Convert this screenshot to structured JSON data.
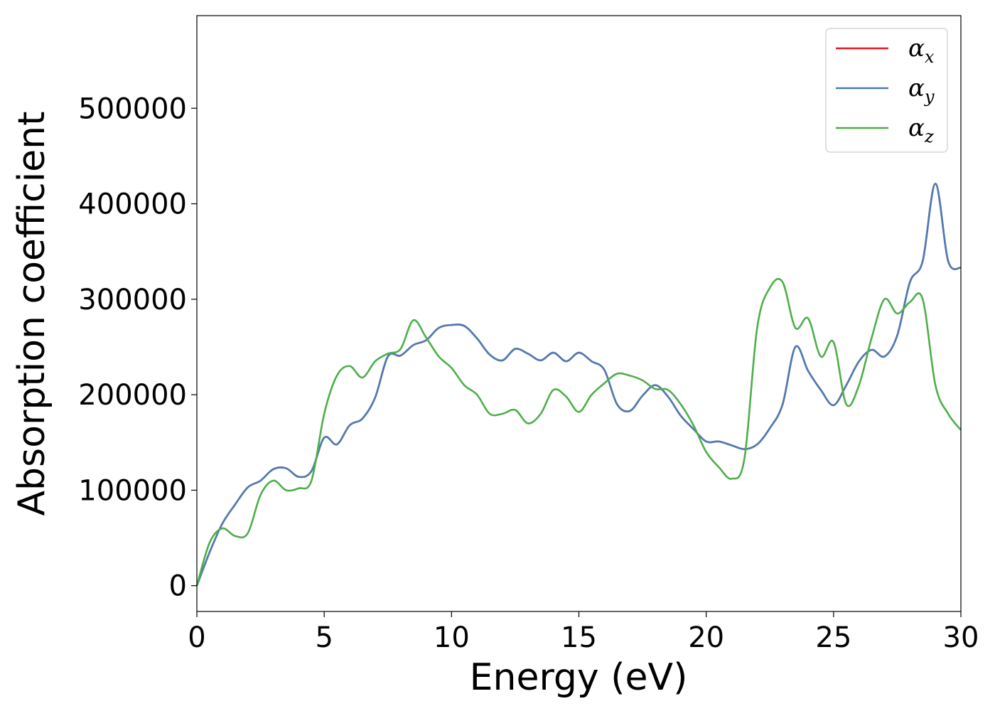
{
  "chart_data": {
    "type": "line",
    "xlabel": "Energy (eV)",
    "ylabel": "Absorption coefficient",
    "xlim": [
      0,
      30
    ],
    "ylim": [
      -27000,
      597000
    ],
    "xticks": [
      0,
      5,
      10,
      15,
      20,
      25,
      30
    ],
    "yticks": [
      0,
      100000,
      200000,
      300000,
      400000,
      500000
    ],
    "xtick_labels": [
      "0",
      "5",
      "10",
      "15",
      "20",
      "25",
      "30"
    ],
    "ytick_labels": [
      "0",
      "100000",
      "200000",
      "300000",
      "400000",
      "500000"
    ],
    "grid": false,
    "legend_position": "top-right",
    "series": [
      {
        "name": "α_x",
        "label_main": "α",
        "label_sub": "x",
        "color": "#e41a1c",
        "x": [
          0,
          0.5,
          1.0,
          1.5,
          2.0,
          2.5,
          3.0,
          3.5,
          4.0,
          4.5,
          5.0,
          5.5,
          6.0,
          6.5,
          7.0,
          7.5,
          8.0,
          8.5,
          9.0,
          9.5,
          10.0,
          10.5,
          11.0,
          11.5,
          12.0,
          12.5,
          13.0,
          13.5,
          14.0,
          14.5,
          15.0,
          15.5,
          16.0,
          16.5,
          17.0,
          17.5,
          18.0,
          18.5,
          19.0,
          19.5,
          20.0,
          20.5,
          21.0,
          21.5,
          22.0,
          22.5,
          23.0,
          23.5,
          24.0,
          24.5,
          25.0,
          25.5,
          26.0,
          26.5,
          27.0,
          27.5,
          28.0,
          28.5,
          29.0,
          29.5,
          30.0
        ],
        "y": [
          0,
          35000,
          65000,
          85000,
          103000,
          110000,
          122000,
          123000,
          114000,
          120000,
          155000,
          148000,
          168000,
          175000,
          197000,
          240000,
          241000,
          252000,
          257000,
          270000,
          273000,
          272000,
          259000,
          242000,
          236000,
          248000,
          243000,
          236000,
          244000,
          235000,
          244000,
          235000,
          226000,
          190000,
          183000,
          199000,
          210000,
          198000,
          178000,
          164000,
          151000,
          151000,
          147000,
          143000,
          148000,
          165000,
          190000,
          250000,
          225000,
          205000,
          189000,
          210000,
          235000,
          247000,
          240000,
          262000,
          318000,
          340000,
          421000,
          340000,
          333000
        ]
      },
      {
        "name": "α_y",
        "label_main": "α",
        "label_sub": "y",
        "color": "#4a7db5",
        "x": [
          0,
          0.5,
          1.0,
          1.5,
          2.0,
          2.5,
          3.0,
          3.5,
          4.0,
          4.5,
          5.0,
          5.5,
          6.0,
          6.5,
          7.0,
          7.5,
          8.0,
          8.5,
          9.0,
          9.5,
          10.0,
          10.5,
          11.0,
          11.5,
          12.0,
          12.5,
          13.0,
          13.5,
          14.0,
          14.5,
          15.0,
          15.5,
          16.0,
          16.5,
          17.0,
          17.5,
          18.0,
          18.5,
          19.0,
          19.5,
          20.0,
          20.5,
          21.0,
          21.5,
          22.0,
          22.5,
          23.0,
          23.5,
          24.0,
          24.5,
          25.0,
          25.5,
          26.0,
          26.5,
          27.0,
          27.5,
          28.0,
          28.5,
          29.0,
          29.5,
          30.0
        ],
        "y": [
          0,
          35000,
          65000,
          85000,
          103000,
          110000,
          122000,
          123000,
          114000,
          120000,
          155000,
          148000,
          168000,
          175000,
          197000,
          240000,
          241000,
          252000,
          257000,
          270000,
          273000,
          272000,
          259000,
          242000,
          236000,
          248000,
          243000,
          236000,
          244000,
          235000,
          244000,
          235000,
          226000,
          190000,
          183000,
          199000,
          210000,
          198000,
          178000,
          164000,
          151000,
          151000,
          147000,
          143000,
          148000,
          165000,
          190000,
          250000,
          225000,
          205000,
          189000,
          210000,
          235000,
          247000,
          240000,
          262000,
          318000,
          340000,
          421000,
          340000,
          333000
        ]
      },
      {
        "name": "α_z",
        "label_main": "α",
        "label_sub": "z",
        "color": "#4daf4a",
        "x": [
          0,
          0.5,
          1.0,
          1.5,
          2.0,
          2.5,
          3.0,
          3.5,
          4.0,
          4.5,
          5.0,
          5.5,
          6.0,
          6.5,
          7.0,
          7.5,
          8.0,
          8.5,
          9.0,
          9.5,
          10.0,
          10.5,
          11.0,
          11.5,
          12.0,
          12.5,
          13.0,
          13.5,
          14.0,
          14.5,
          15.0,
          15.5,
          16.0,
          16.5,
          17.0,
          17.5,
          18.0,
          18.5,
          19.0,
          19.5,
          20.0,
          20.5,
          21.0,
          21.5,
          22.0,
          22.5,
          23.0,
          23.5,
          24.0,
          24.5,
          25.0,
          25.5,
          26.0,
          26.5,
          27.0,
          27.5,
          28.0,
          28.5,
          29.0,
          29.5,
          30.0
        ],
        "y": [
          0,
          45000,
          60000,
          52000,
          55000,
          95000,
          110000,
          100000,
          102000,
          110000,
          180000,
          220000,
          230000,
          218000,
          235000,
          243000,
          248000,
          278000,
          260000,
          240000,
          228000,
          210000,
          200000,
          180000,
          180000,
          184000,
          170000,
          180000,
          205000,
          198000,
          182000,
          200000,
          212000,
          222000,
          220000,
          215000,
          206000,
          205000,
          190000,
          168000,
          140000,
          124000,
          112000,
          133000,
          270000,
          312000,
          318000,
          270000,
          280000,
          240000,
          255000,
          190000,
          210000,
          260000,
          300000,
          285000,
          297000,
          300000,
          210000,
          180000,
          163000
        ]
      }
    ]
  }
}
